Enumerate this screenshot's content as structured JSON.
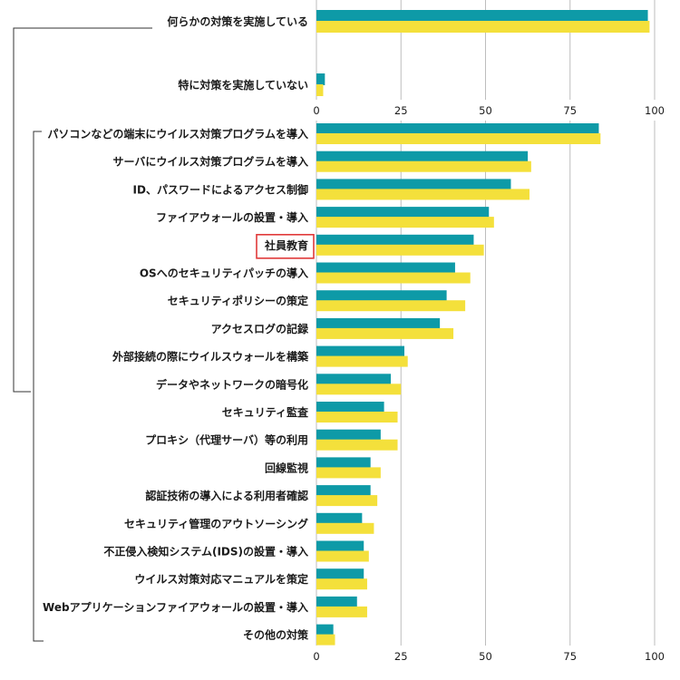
{
  "chart_data": [
    {
      "type": "bar",
      "orientation": "horizontal",
      "categories": [
        "何らかの対策を実施している",
        "特に対策を実施していない"
      ],
      "series": [
        {
          "color": "#0e9aa7",
          "values": [
            98,
            2.5
          ]
        },
        {
          "color": "#f4e03b",
          "values": [
            98.5,
            2
          ]
        }
      ],
      "xlim": [
        0,
        100
      ],
      "xticks": [
        0,
        25,
        50,
        75,
        100
      ],
      "grid": true
    },
    {
      "type": "bar",
      "orientation": "horizontal",
      "categories": [
        "パソコンなどの端末にウイルス対策プログラムを導入",
        "サーバにウイルス対策プログラムを導入",
        "ID、パスワードによるアクセス制御",
        "ファイアウォールの設置・導入",
        "社員教育",
        "OSへのセキュリティパッチの導入",
        "セキュリティポリシーの策定",
        "アクセスログの記録",
        "外部接続の際にウイルスウォールを構築",
        "データやネットワークの暗号化",
        "セキュリティ監査",
        "プロキシ（代理サーバ）等の利用",
        "回線監視",
        "認証技術の導入による利用者確認",
        "セキュリティ管理のアウトソーシング",
        "不正侵入検知システム(IDS)の設置・導入",
        "ウイルス対策対応マニュアルを策定",
        "Webアプリケーションファイアウォールの設置・導入",
        "その他の対策"
      ],
      "series": [
        {
          "color": "#0e9aa7",
          "values": [
            83.5,
            62.5,
            57.5,
            51,
            46.5,
            41,
            38.5,
            36.5,
            26,
            22,
            20,
            19,
            16,
            16,
            13.5,
            14,
            14,
            12,
            5
          ]
        },
        {
          "color": "#f4e03b",
          "values": [
            84,
            63.5,
            63,
            52.5,
            49.5,
            45.5,
            44,
            40.5,
            27,
            25,
            24,
            24,
            19,
            18,
            17,
            15.5,
            15,
            15,
            5.5
          ]
        }
      ],
      "xlim": [
        0,
        100
      ],
      "xticks": [
        0,
        25,
        50,
        75,
        100
      ],
      "grid": true,
      "highlighted_category": "社員教育"
    }
  ]
}
